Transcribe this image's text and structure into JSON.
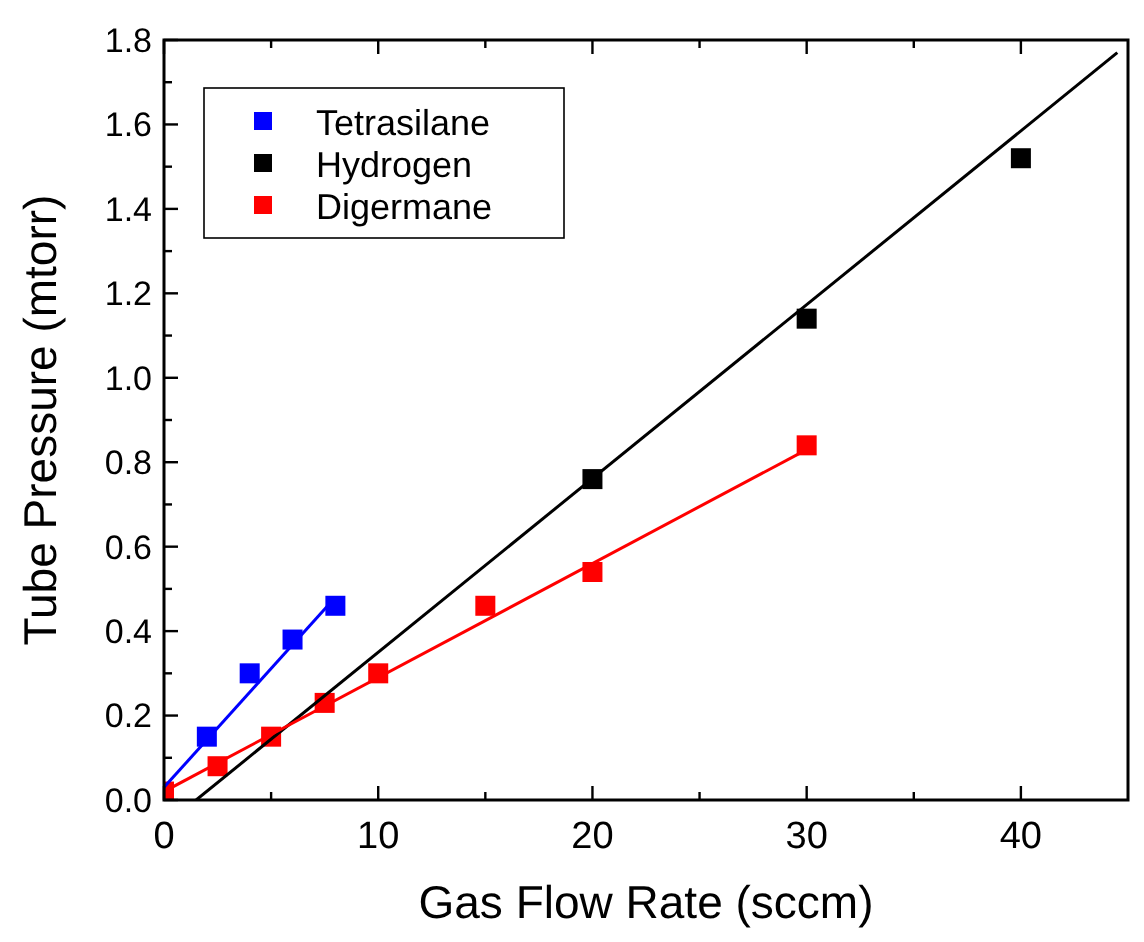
{
  "chart_data": {
    "type": "scatter",
    "xlabel": "Gas Flow Rate (sccm)",
    "ylabel": "Tube Pressure (mtorr)",
    "xlim": [
      0,
      45
    ],
    "ylim": [
      0,
      1.8
    ],
    "xticks": [
      0,
      {
        "value": 5,
        "label": null
      },
      10,
      {
        "value": 15,
        "label": null
      },
      20,
      {
        "value": 25,
        "label": null
      },
      30,
      {
        "value": 35,
        "label": null
      },
      40
    ],
    "yticks": [
      "0.0",
      {
        "value": 0.1,
        "label": null
      },
      0.2,
      {
        "value": 0.3,
        "label": null
      },
      0.4,
      {
        "value": 0.5,
        "label": null
      },
      0.6,
      {
        "value": 0.7,
        "label": null
      },
      0.8,
      {
        "value": 0.9,
        "label": null
      },
      "1.0",
      {
        "value": 1.1,
        "label": null
      },
      1.2,
      {
        "value": 1.3,
        "label": null
      },
      1.4,
      {
        "value": 1.5,
        "label": null
      },
      1.6,
      {
        "value": 1.7,
        "label": null
      },
      1.8
    ],
    "marker": "square",
    "grid": false,
    "legend": "top left",
    "series": [
      {
        "name": "Tetrasilane",
        "color": "#0000ff",
        "x": [
          2,
          4,
          6,
          8
        ],
        "values": [
          0.15,
          0.3,
          0.38,
          0.46
        ]
      },
      {
        "name": "Hydrogen",
        "color": "#000000",
        "x": [
          20,
          30,
          40
        ],
        "values": [
          0.76,
          1.14,
          1.52
        ]
      },
      {
        "name": "Digermane",
        "color": "#ff0000",
        "x": [
          0,
          2.5,
          5,
          7.5,
          10,
          15,
          20,
          30
        ],
        "values": [
          0.02,
          0.08,
          0.15,
          0.23,
          0.3,
          0.46,
          0.54,
          0.84
        ]
      },
      {
        "type": "line",
        "color": "#0000ff",
        "marker": "none",
        "x": [
          0,
          8
        ],
        "values": [
          0.03,
          0.48
        ]
      },
      {
        "type": "line",
        "color": "#000000",
        "marker": "none",
        "x": [
          1.5,
          44.5
        ],
        "values": [
          0,
          1.77
        ]
      },
      {
        "type": "line",
        "color": "#ff0000",
        "marker": "none",
        "x": [
          0,
          30
        ],
        "values": [
          0.02,
          0.83
        ]
      }
    ]
  }
}
